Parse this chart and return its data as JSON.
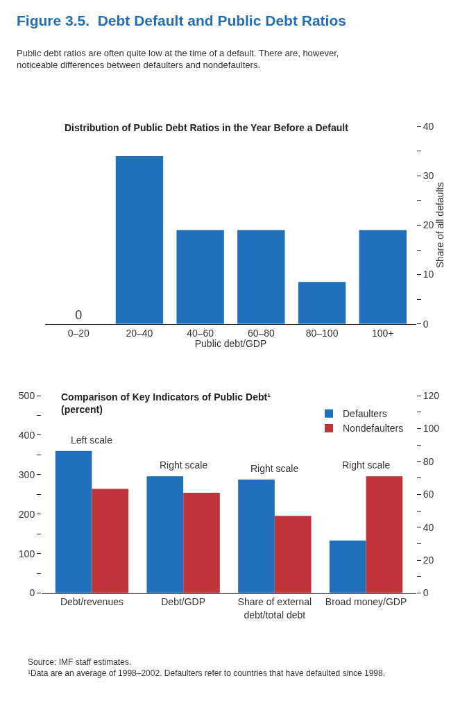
{
  "chart_data": [
    {
      "type": "other",
      "title": "Figure 3.5.  Debt Default and Public Debt Ratios",
      "subtitle": "Public debt ratios are often quite low at the time of a default. There are, however, noticeable differences between defaulters and nondefaulters."
    },
    {
      "type": "bar",
      "title": "Distribution of Public Debt Ratios in the Year Before a Default",
      "xlabel": "Public debt/GDP",
      "y2label": "Share of all defaults",
      "categories": [
        "0–20",
        "20–40",
        "40–60",
        "60–80",
        "80–100",
        "100+"
      ],
      "series": [
        {
          "color": "#2270bb",
          "axis": "y2",
          "values": [
            0,
            34,
            19,
            19,
            8.5,
            19
          ],
          "value_labels": [
            "0",
            null,
            null,
            null,
            null,
            null
          ]
        }
      ],
      "y2lim": [
        0,
        40
      ],
      "y2ticks": [
        0,
        {
          "value": 5,
          "label": null
        },
        10,
        {
          "value": 15,
          "label": null
        },
        20,
        {
          "value": 25,
          "label": null
        },
        30,
        {
          "value": 35,
          "label": null
        },
        40
      ]
    },
    {
      "type": "bar",
      "title": "Comparison of Key Indicators of Public Debt¹",
      "subtitle": "(percent)",
      "categories": [
        "Debt/revenues",
        "Debt/GDP",
        "Share of external debt/total debt",
        "Broad money/GDP"
      ],
      "series": [
        {
          "name": "Defaulters",
          "color": "#2270bb",
          "values": [
            360,
            null,
            null,
            null
          ]
        },
        {
          "name": "Nondefaulters",
          "color": "#c1343b",
          "values": [
            264,
            null,
            null,
            null
          ]
        },
        {
          "color": "#2270bb",
          "axis": "y2",
          "values": [
            null,
            71,
            69,
            32
          ]
        },
        {
          "color": "#c1343b",
          "axis": "y2",
          "values": [
            null,
            61,
            47,
            71
          ]
        }
      ],
      "ylim": [
        0,
        500
      ],
      "yticks": [
        0,
        {
          "value": 50,
          "label": null
        },
        100,
        {
          "value": 150,
          "label": null
        },
        200,
        {
          "value": 250,
          "label": null
        },
        300,
        {
          "value": 350,
          "label": null
        },
        400,
        {
          "value": 450,
          "label": null
        },
        500
      ],
      "y2lim": [
        0,
        120
      ],
      "y2ticks": [
        0,
        {
          "value": 10,
          "label": null
        },
        20,
        {
          "value": 30,
          "label": null
        },
        40,
        {
          "value": 50,
          "label": null
        },
        60,
        {
          "value": 70,
          "label": null
        },
        80,
        {
          "value": 90,
          "label": null
        },
        100,
        {
          "value": 110,
          "label": null
        },
        120
      ],
      "legend": "top right",
      "annotations": [
        "Left scale",
        "Right scale",
        "Right scale",
        "Right scale",
        "Source: IMF staff estimates.",
        "¹Data are an average of 1998–2002. Defaulters refer to countries that have defaulted since 1998."
      ]
    }
  ]
}
